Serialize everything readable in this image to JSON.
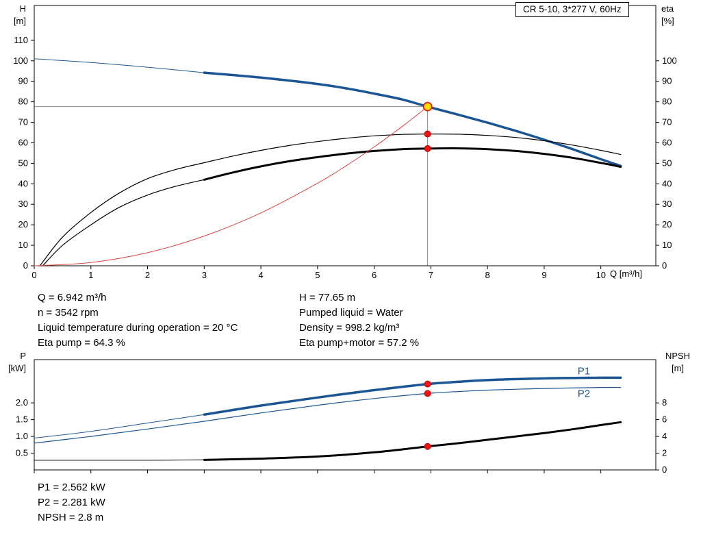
{
  "title_box": "CR 5-10, 3*277 V, 60Hz",
  "colors": {
    "curve_blue": "#1c5593",
    "curve_black": "#000000",
    "curve_red": "#e04040",
    "marker_red": "#e81717",
    "duty_yellow": "#ffdf00",
    "ref_gray": "#8c8c8c"
  },
  "axis_corners": {
    "hq_left_1": "H",
    "hq_left_2": "[m]",
    "hq_right_1": "eta",
    "hq_right_2": "[%]",
    "hq_x": "Q [m³/h]",
    "power_left_1": "P",
    "power_left_2": "[kW]",
    "power_right_1": "NPSH",
    "power_right_2": "[m]"
  },
  "info_top": {
    "left": [
      "Q = 6.942 m³/h",
      "n = 3542 rpm",
      "Liquid temperature during operation = 20 °C",
      "Eta pump = 64.3 %"
    ],
    "right": [
      "H = 77.65 m",
      "Pumped liquid = Water",
      "Density = 998.2 kg/m³",
      "Eta pump+motor = 57.2 %"
    ]
  },
  "info_bottom": [
    "P1 = 2.562 kW",
    "P2 = 2.281 kW",
    "NPSH = 2.8 m"
  ],
  "chart_data": [
    {
      "id": "hq",
      "type": "line",
      "title": "CR 5-10, 3*277 V, 60Hz",
      "xlabel": "Q [m³/h]",
      "ylabel_left": "H [m]",
      "ylabel_right": "eta [%]",
      "xlim": [
        0,
        10.97
      ],
      "ylim_left": [
        0,
        127
      ],
      "ylim_right": [
        0,
        127
      ],
      "grid": false,
      "xticks": {
        "values": [
          0,
          1,
          2,
          3,
          4,
          5,
          6,
          7,
          8,
          9,
          10
        ],
        "labels": [
          "0",
          "1",
          "2",
          "3",
          "4",
          "5",
          "6",
          "7",
          "8",
          "9",
          "10"
        ]
      },
      "yticks_left": {
        "values": [
          0,
          10,
          20,
          30,
          40,
          50,
          60,
          70,
          80,
          90,
          100,
          110
        ],
        "labels": [
          "0",
          "10",
          "20",
          "30",
          "40",
          "50",
          "60",
          "70",
          "80",
          "90",
          "100",
          "110"
        ]
      },
      "yticks_right": {
        "values": [
          0,
          10,
          20,
          30,
          40,
          50,
          60,
          70,
          80,
          90,
          100
        ],
        "labels": [
          "0",
          "10",
          "20",
          "30",
          "40",
          "50",
          "60",
          "70",
          "80",
          "90",
          "100"
        ]
      },
      "ref_lines": [
        {
          "points": [
            [
              0,
              77.65
            ],
            [
              6.942,
              77.65
            ]
          ],
          "color": "#8c8c8c"
        },
        {
          "points": [
            [
              6.942,
              77.65
            ],
            [
              6.942,
              0
            ]
          ],
          "color": "#8c8c8c"
        }
      ],
      "series": [
        {
          "name": "head-curve-low-flow",
          "color": "#1c5593",
          "width": 1,
          "axis": "left",
          "points": [
            [
              0,
              101
            ],
            [
              1,
              99.2
            ],
            [
              2,
              96.9
            ],
            [
              3,
              94.2
            ]
          ]
        },
        {
          "name": "head-curve",
          "color": "#1c5593",
          "width": 3.5,
          "axis": "left",
          "points": [
            [
              3,
              94.2
            ],
            [
              4,
              91.8
            ],
            [
              5,
              88.7
            ],
            [
              5.5,
              86.6
            ],
            [
              6,
              84
            ],
            [
              6.5,
              81.1
            ],
            [
              6.942,
              77.65
            ],
            [
              7.5,
              73.6
            ],
            [
              8,
              69.8
            ],
            [
              8.5,
              65.8
            ],
            [
              9,
              61.5
            ],
            [
              9.5,
              56.9
            ],
            [
              10,
              52
            ],
            [
              10.35,
              48.7
            ]
          ]
        },
        {
          "name": "eta-pump-curve",
          "color": "#000000",
          "width": 1.2,
          "axis": "right",
          "points": [
            [
              0.1,
              0
            ],
            [
              0.5,
              14
            ],
            [
              1,
              26
            ],
            [
              1.5,
              35.5
            ],
            [
              2,
              42.5
            ],
            [
              2.5,
              47
            ],
            [
              3,
              50.3
            ],
            [
              3.5,
              53.5
            ],
            [
              4,
              56.3
            ],
            [
              4.5,
              58.7
            ],
            [
              5,
              60.6
            ],
            [
              5.5,
              62.2
            ],
            [
              6,
              63.4
            ],
            [
              6.5,
              64.1
            ],
            [
              6.942,
              64.3
            ],
            [
              7.5,
              64.2
            ],
            [
              8,
              63.6
            ],
            [
              8.5,
              62.6
            ],
            [
              9,
              61
            ],
            [
              9.5,
              58.9
            ],
            [
              10,
              56.3
            ],
            [
              10.35,
              54.3
            ]
          ]
        },
        {
          "name": "eta-pump-motor-low-flow",
          "color": "#000000",
          "width": 1.2,
          "axis": "right",
          "points": [
            [
              0.15,
              0
            ],
            [
              0.5,
              10
            ],
            [
              1,
              20
            ],
            [
              1.5,
              28.5
            ],
            [
              2,
              34.5
            ],
            [
              2.5,
              38.8
            ],
            [
              3,
              42
            ]
          ]
        },
        {
          "name": "eta-pump-motor-curve",
          "color": "#000000",
          "width": 3,
          "axis": "right",
          "points": [
            [
              3,
              42
            ],
            [
              3.5,
              45.5
            ],
            [
              4,
              48.5
            ],
            [
              4.5,
              51
            ],
            [
              5,
              53
            ],
            [
              5.5,
              54.7
            ],
            [
              6,
              56
            ],
            [
              6.5,
              56.9
            ],
            [
              6.942,
              57.2
            ],
            [
              7.5,
              57.3
            ],
            [
              8,
              56.9
            ],
            [
              8.5,
              56
            ],
            [
              9,
              54.6
            ],
            [
              9.5,
              52.7
            ],
            [
              10,
              50.2
            ],
            [
              10.35,
              48.3
            ]
          ]
        },
        {
          "name": "system-curve",
          "color": "#e04040",
          "width": 1,
          "axis": "left",
          "points": [
            [
              0,
              0
            ],
            [
              1,
              1.6
            ],
            [
              2,
              6.4
            ],
            [
              3,
              14.5
            ],
            [
              4,
              25.8
            ],
            [
              5,
              40.3
            ],
            [
              5.5,
              48.7
            ],
            [
              6,
              58
            ],
            [
              6.5,
              68.1
            ],
            [
              6.942,
              77.65
            ]
          ]
        }
      ],
      "markers": [
        {
          "x": 6.942,
          "y": 77.65,
          "axis": "left",
          "style": "duty",
          "name": "duty-point-marker"
        },
        {
          "x": 6.942,
          "y": 64.3,
          "axis": "right",
          "style": "dot",
          "name": "eta-pump-point-marker"
        },
        {
          "x": 6.942,
          "y": 57.2,
          "axis": "right",
          "style": "dot",
          "name": "eta-pump-motor-point-marker"
        }
      ],
      "annotations": []
    },
    {
      "id": "power",
      "type": "line",
      "title": "",
      "xlabel": "",
      "ylabel_left": "P [kW]",
      "ylabel_right": "NPSH [m]",
      "xlim": [
        0,
        10.97
      ],
      "ylim_left": [
        0,
        3.29
      ],
      "ylim_right": [
        0,
        13.16
      ],
      "grid": false,
      "xticks": {
        "values": [
          0,
          1,
          2,
          3,
          4,
          5,
          6,
          7,
          8,
          9,
          10
        ],
        "labels": []
      },
      "yticks_left": {
        "values": [
          0.5,
          1,
          1.5,
          2
        ],
        "labels": [
          "0.5",
          "1.0",
          "1.5",
          "2.0"
        ]
      },
      "yticks_right": {
        "values": [
          0,
          2,
          4,
          6,
          8
        ],
        "labels": [
          "0",
          "2",
          "4",
          "6",
          "8"
        ]
      },
      "ref_lines": [],
      "series": [
        {
          "name": "p1-curve-low-flow",
          "color": "#1c5593",
          "width": 1,
          "axis": "left",
          "points": [
            [
              0,
              0.95
            ],
            [
              1,
              1.15
            ],
            [
              2,
              1.4
            ],
            [
              3,
              1.65
            ]
          ]
        },
        {
          "name": "p1-curve",
          "color": "#1c5593",
          "width": 3.5,
          "axis": "left",
          "points": [
            [
              3,
              1.65
            ],
            [
              4,
              1.92
            ],
            [
              5,
              2.16
            ],
            [
              6,
              2.38
            ],
            [
              6.942,
              2.562
            ],
            [
              7.5,
              2.63
            ],
            [
              8,
              2.68
            ],
            [
              9,
              2.73
            ],
            [
              10,
              2.75
            ],
            [
              10.35,
              2.75
            ]
          ]
        },
        {
          "name": "p2-curve",
          "color": "#1c5593",
          "width": 1.2,
          "axis": "left",
          "points": [
            [
              0,
              0.8
            ],
            [
              1,
              1.0
            ],
            [
              2,
              1.22
            ],
            [
              3,
              1.45
            ],
            [
              4,
              1.7
            ],
            [
              5,
              1.93
            ],
            [
              6,
              2.13
            ],
            [
              6.942,
              2.281
            ],
            [
              7.5,
              2.34
            ],
            [
              8,
              2.38
            ],
            [
              9,
              2.43
            ],
            [
              10,
              2.46
            ],
            [
              10.35,
              2.46
            ]
          ]
        },
        {
          "name": "npsh-curve-low-flow",
          "color": "#000000",
          "width": 1,
          "axis": "right",
          "points": [
            [
              0,
              1.15
            ],
            [
              1,
              1.15
            ],
            [
              2,
              1.15
            ],
            [
              3,
              1.2
            ]
          ]
        },
        {
          "name": "npsh-curve",
          "color": "#000000",
          "width": 3,
          "axis": "right",
          "points": [
            [
              3,
              1.2
            ],
            [
              4,
              1.35
            ],
            [
              5,
              1.6
            ],
            [
              6,
              2.1
            ],
            [
              6.942,
              2.8
            ],
            [
              7.5,
              3.2
            ],
            [
              8,
              3.6
            ],
            [
              8.5,
              4
            ],
            [
              9,
              4.4
            ],
            [
              9.5,
              4.85
            ],
            [
              10,
              5.35
            ],
            [
              10.35,
              5.7
            ]
          ]
        }
      ],
      "markers": [
        {
          "x": 6.942,
          "y": 2.562,
          "axis": "left",
          "style": "dot",
          "name": "p1-point-marker"
        },
        {
          "x": 6.942,
          "y": 2.281,
          "axis": "left",
          "style": "dot",
          "name": "p2-point-marker"
        },
        {
          "x": 6.942,
          "y": 2.8,
          "axis": "right",
          "style": "dot",
          "name": "npsh-point-marker"
        }
      ],
      "annotations": [
        {
          "x": 9.7,
          "y": 2.85,
          "text": "P1",
          "color": "#1c5593",
          "name": "p1-curve-label"
        },
        {
          "x": 9.7,
          "y": 2.18,
          "text": "P2",
          "color": "#1c5593",
          "name": "p2-curve-label"
        }
      ]
    }
  ]
}
